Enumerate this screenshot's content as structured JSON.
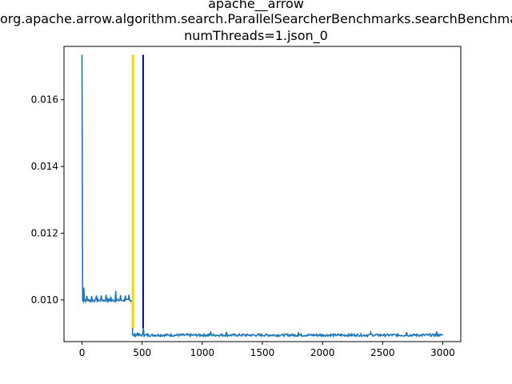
{
  "chart_data": {
    "type": "line",
    "title_lines": [
      "apache__arrow",
      "org.apache.arrow.algorithm.search.ParallelSearcherBenchmarks.searchBenchmark-",
      "numThreads=1.json_0"
    ],
    "xlabel": "",
    "ylabel": "",
    "xlim": [
      -150,
      3150
    ],
    "ylim": [
      0.00875,
      0.0176
    ],
    "x_ticks": [
      0,
      500,
      1000,
      1500,
      2000,
      2500,
      3000
    ],
    "x_tick_labels": [
      "0",
      "500",
      "1000",
      "1500",
      "2000",
      "2500",
      "3000"
    ],
    "y_ticks": [
      0.01,
      0.012,
      0.014,
      0.016
    ],
    "y_tick_labels": [
      "0.010",
      "0.012",
      "0.014",
      "0.016"
    ],
    "grid": false,
    "series": [
      {
        "color": "#1f77b4",
        "segments": [
          {
            "x_start": 0,
            "x_end": 420,
            "baseline": 0.00997,
            "jitter": 8e-05,
            "spikes": [
              [
                0,
                0.01735
              ],
              [
                15,
                0.01037
              ],
              [
                40,
                0.01012
              ],
              [
                80,
                0.01012
              ],
              [
                120,
                0.01013
              ],
              [
                160,
                0.01013
              ],
              [
                200,
                0.01015
              ],
              [
                240,
                0.0101
              ],
              [
                280,
                0.01027
              ],
              [
                320,
                0.01014
              ],
              [
                360,
                0.01013
              ],
              [
                390,
                0.01015
              ]
            ]
          },
          {
            "x_start": 420,
            "x_end": 3000,
            "baseline": 0.00893,
            "jitter": 7e-05,
            "spikes": [
              [
                420,
                0.00893
              ],
              [
                460,
                0.00902
              ],
              [
                510,
                0.00918
              ],
              [
                1070,
                0.00905
              ],
              [
                1200,
                0.00904
              ],
              [
                1800,
                0.00903
              ],
              [
                2400,
                0.00903
              ],
              [
                2700,
                0.00903
              ],
              [
                2950,
                0.00905
              ]
            ]
          }
        ]
      }
    ],
    "vlines": [
      {
        "x": 420,
        "color": "#ffd700",
        "label": ""
      },
      {
        "x": 428,
        "color": "#ffd700",
        "label": ""
      },
      {
        "x": 508,
        "color": "#0000cd",
        "label": ""
      }
    ],
    "vline_ymax": 0.01735
  }
}
